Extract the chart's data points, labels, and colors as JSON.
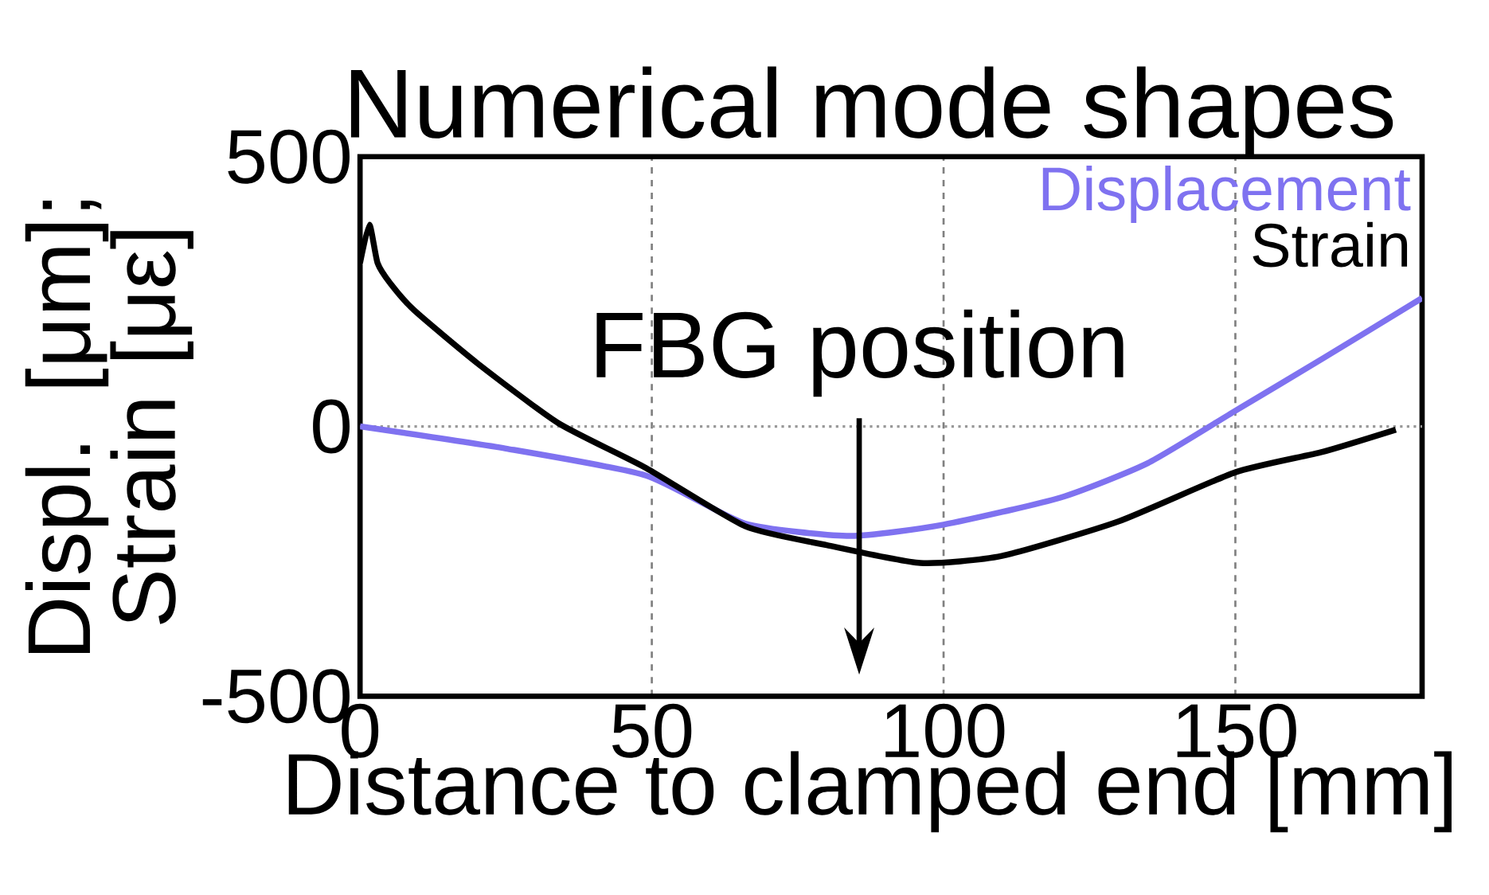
{
  "chart_data": {
    "type": "line",
    "title": "Numerical mode shapes",
    "xlabel": "Distance to clamped end [mm]",
    "ylabel": "Displ. [μm]; Strain [με]",
    "xlim": [
      0,
      182
    ],
    "ylim": [
      -500,
      500
    ],
    "xticks": [
      0,
      50,
      100,
      150
    ],
    "yticks": [
      -500,
      0,
      500
    ],
    "grid": "x",
    "legend": "top right",
    "line_style": "solid",
    "marker": "none",
    "ref_lines": [
      {
        "axis": "y",
        "value": 0,
        "color": "#999999",
        "line_style": "dotted"
      }
    ],
    "annotations": [
      "FBG position"
    ],
    "series": [
      {
        "name": "Displacement",
        "color": "#7f72f0",
        "x": [
          0,
          25,
          49,
          66,
          84,
          100,
          120,
          135,
          150,
          165,
          182
        ],
        "values": [
          0,
          -41,
          -91,
          -180,
          -203,
          -182,
          -132,
          -68,
          29,
          126,
          238
        ]
      },
      {
        "name": "Strain",
        "color": "#000000",
        "x": [
          0,
          1.6,
          3,
          5.2,
          9.3,
          20,
          34,
          49,
          66,
          80,
          96,
          110,
          130,
          150,
          165,
          177.5
        ],
        "values": [
          303,
          374,
          303,
          265,
          215,
          118,
          6,
          -77,
          -185,
          -220,
          -253,
          -240,
          -176,
          -85,
          -47,
          -6
        ]
      }
    ]
  }
}
